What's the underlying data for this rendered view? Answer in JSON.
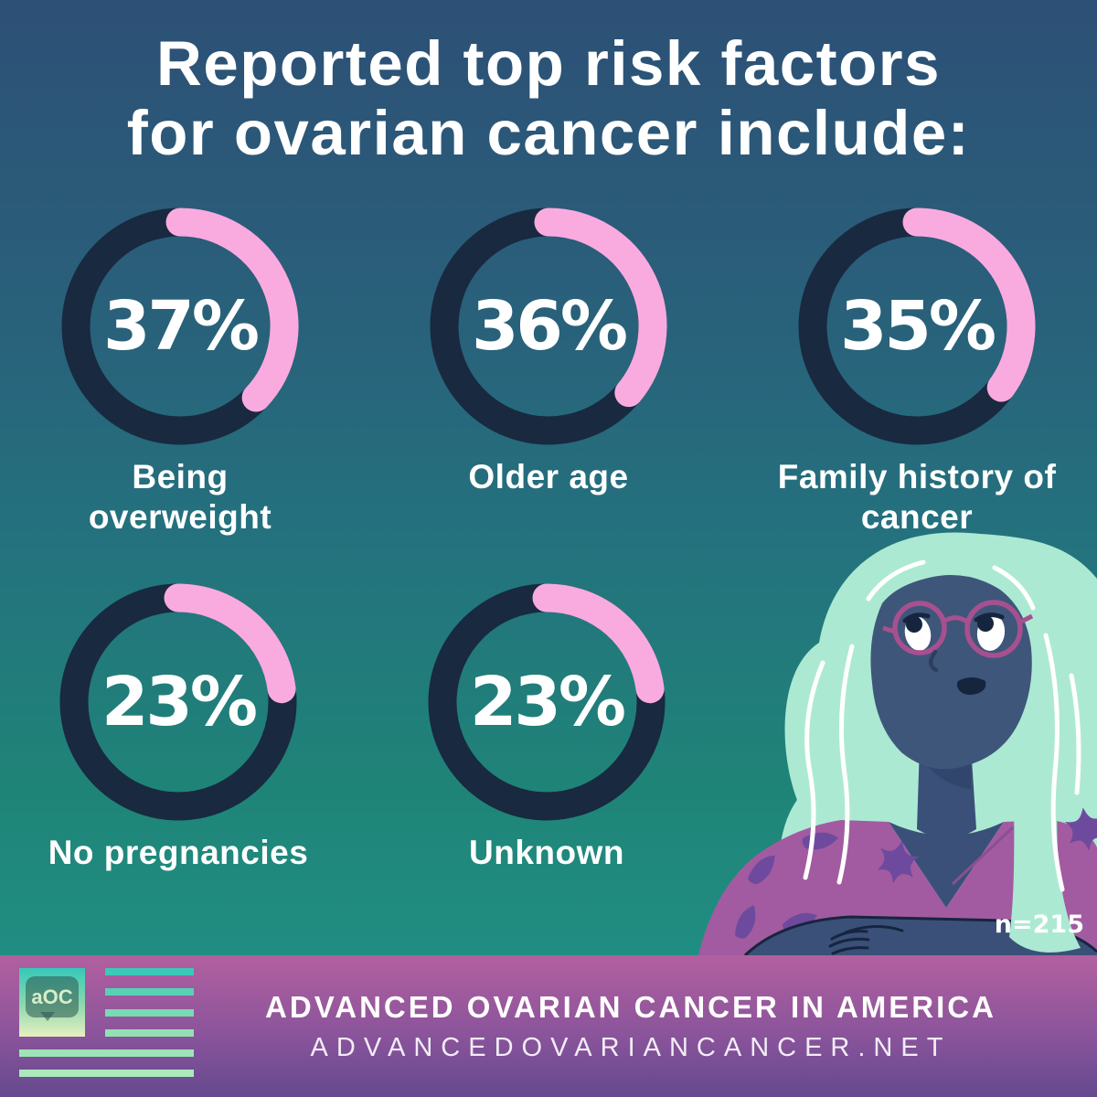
{
  "title": {
    "line1": "Reported top risk factors",
    "line2": "for ovarian cancer include:"
  },
  "chart_data": {
    "type": "pie",
    "variant": "donut-gauge-set",
    "title": "Reported top risk factors for ovarian cancer include:",
    "categories": [
      "Being overweight",
      "Older age",
      "Family history of cancer",
      "No pregnancies",
      "Unknown"
    ],
    "values": [
      37,
      36,
      35,
      23,
      23
    ],
    "unit": "%",
    "sample_size_note": "n=215",
    "start_angle": "12 o'clock",
    "direction": "clockwise",
    "legend_position": "below-each-gauge",
    "colors": {
      "track": "#19293f",
      "arc": "#f9abdf",
      "value_text": "#ffffff"
    },
    "items": [
      {
        "label": "Being overweight",
        "label_lines": [
          "Being",
          "overweight"
        ],
        "value": 37,
        "value_label": "37%"
      },
      {
        "label": "Older age",
        "label_lines": [
          "Older age"
        ],
        "value": 36,
        "value_label": "36%"
      },
      {
        "label": "Family history of cancer",
        "label_lines": [
          "Family history of",
          "cancer"
        ],
        "value": 35,
        "value_label": "35%"
      },
      {
        "label": "No pregnancies",
        "label_lines": [
          "No pregnancies"
        ],
        "value": 23,
        "value_label": "23%"
      },
      {
        "label": "Unknown",
        "label_lines": [
          "Unknown"
        ],
        "value": 23,
        "value_label": "23%"
      }
    ]
  },
  "footer": {
    "logo_text": "aOC",
    "title": "ADVANCED OVARIAN CANCER IN AMERICA",
    "url": "ADVANCEDOVARIANCANCER.NET"
  },
  "theme": {
    "background_top": "#2d5076",
    "background_bottom": "#21968b",
    "ring_track": "#19293f",
    "ring_arc": "#f9abdf",
    "footer_top": "#b2609f",
    "footer_bottom": "#65498f",
    "text": "#ffffff",
    "hair_mint": "#ace9d3",
    "skin_navy": "#3a5078",
    "blouse_magenta": "#a25ba0",
    "leaf_purple": "#6e4a9f",
    "glasses_magenta": "#a8508f"
  }
}
